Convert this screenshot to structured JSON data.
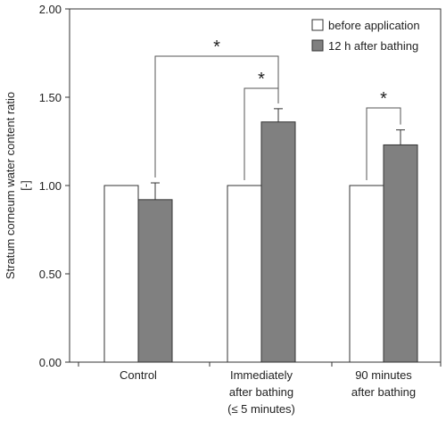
{
  "chart_data": {
    "type": "bar",
    "ylabel_lines": [
      "Stratum corneum water content ratio",
      "[-]"
    ],
    "ylim": [
      0,
      2
    ],
    "yticks": [
      "0.00",
      "0.50",
      "1.00",
      "1.50",
      "2.00"
    ],
    "ytick_values": [
      0,
      0.5,
      1,
      1.5,
      2
    ],
    "grid": false,
    "legend_position": "top-right",
    "categories": [
      {
        "lines": [
          "Control"
        ]
      },
      {
        "lines": [
          "Immediately",
          "after bathing",
          "(≤ 5 minutes)"
        ]
      },
      {
        "lines": [
          "90 minutes",
          "after bathing"
        ]
      }
    ],
    "series": [
      {
        "name": "before application",
        "color": "#ffffff",
        "values": [
          1.0,
          1.0,
          1.0
        ],
        "errors": [
          0,
          0,
          0
        ]
      },
      {
        "name": "12 h after bathing",
        "color": "#808080",
        "values": [
          0.92,
          1.36,
          1.23
        ],
        "errors": [
          0.095,
          0.075,
          0.085
        ]
      }
    ],
    "significance": [
      {
        "label": "*",
        "from": {
          "category": 0,
          "series": 1
        },
        "to": {
          "category": 1,
          "series": 1
        }
      },
      {
        "label": "*",
        "from": {
          "category": 1,
          "series": 0
        },
        "to": {
          "category": 1,
          "series": 1
        }
      },
      {
        "label": "*",
        "from": {
          "category": 2,
          "series": 0
        },
        "to": {
          "category": 2,
          "series": 1
        }
      }
    ]
  }
}
